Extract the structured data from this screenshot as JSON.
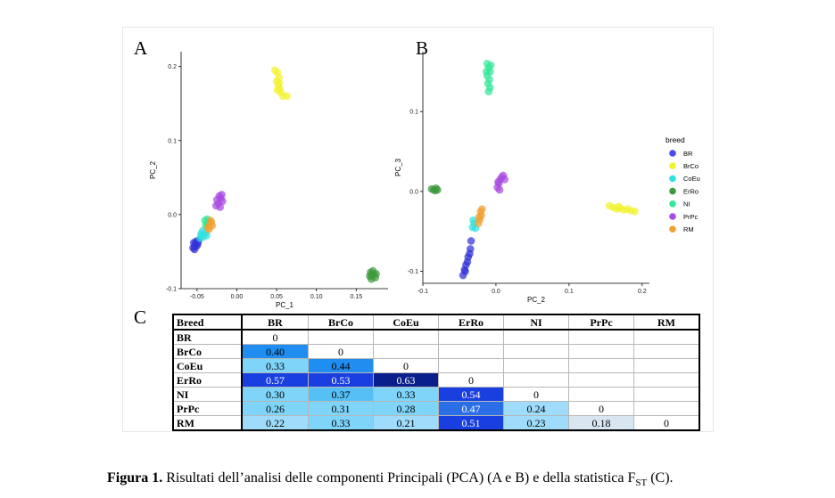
{
  "panels": {
    "a_letter": "A",
    "b_letter": "B",
    "c_letter": "C"
  },
  "legend": {
    "title": "breed",
    "entries": [
      {
        "label": "BR",
        "color": "#4a4ae8"
      },
      {
        "label": "BrCo",
        "color": "#f2f230"
      },
      {
        "label": "CoEu",
        "color": "#33e0e0"
      },
      {
        "label": "ErRo",
        "color": "#3c9a3c"
      },
      {
        "label": "NI",
        "color": "#33e89a"
      },
      {
        "label": "PrPc",
        "color": "#a84be0"
      },
      {
        "label": "RM",
        "color": "#f0a030"
      }
    ]
  },
  "chart_data": [
    {
      "type": "scatter",
      "panel": "A",
      "xlabel": "PC_1",
      "ylabel": "PC_2",
      "xlim": [
        -0.07,
        0.19
      ],
      "ylim": [
        -0.1,
        0.22
      ],
      "xticks": [
        "-0.05",
        "0.00",
        "0.05",
        "0.10",
        "0.15"
      ],
      "xtick_values": [
        -0.05,
        0.0,
        0.05,
        0.1,
        0.15
      ],
      "yticks": [
        "-0.1",
        "0.0",
        "0.1",
        "0.2"
      ],
      "ytick_values": [
        -0.1,
        0.0,
        0.1,
        0.2
      ],
      "series": [
        {
          "name": "BR",
          "color": "#3232d8",
          "points": [
            [
              -0.055,
              -0.045
            ],
            [
              -0.053,
              -0.043
            ],
            [
              -0.052,
              -0.04
            ],
            [
              -0.054,
              -0.038
            ],
            [
              -0.05,
              -0.042
            ],
            [
              -0.051,
              -0.036
            ],
            [
              -0.049,
              -0.039
            ],
            [
              -0.053,
              -0.047
            ],
            [
              -0.048,
              -0.035
            ]
          ]
        },
        {
          "name": "BrCo",
          "color": "#f2f230",
          "points": [
            [
              0.048,
              0.195
            ],
            [
              0.051,
              0.192
            ],
            [
              0.053,
              0.185
            ],
            [
              0.05,
              0.18
            ],
            [
              0.052,
              0.175
            ],
            [
              0.054,
              0.17
            ],
            [
              0.051,
              0.168
            ],
            [
              0.055,
              0.165
            ],
            [
              0.058,
              0.16
            ],
            [
              0.063,
              0.16
            ],
            [
              0.053,
              0.178
            ]
          ]
        },
        {
          "name": "CoEu",
          "color": "#33e0e0",
          "points": [
            [
              -0.046,
              -0.032
            ],
            [
              -0.044,
              -0.028
            ],
            [
              -0.042,
              -0.03
            ],
            [
              -0.04,
              -0.025
            ],
            [
              -0.043,
              -0.022
            ],
            [
              -0.038,
              -0.028
            ],
            [
              -0.045,
              -0.026
            ]
          ]
        },
        {
          "name": "ErRo",
          "color": "#3c9a3c",
          "points": [
            [
              0.168,
              -0.078
            ],
            [
              0.17,
              -0.082
            ],
            [
              0.172,
              -0.08
            ],
            [
              0.174,
              -0.085
            ],
            [
              0.169,
              -0.087
            ],
            [
              0.171,
              -0.076
            ],
            [
              0.175,
              -0.08
            ],
            [
              0.167,
              -0.083
            ]
          ]
        },
        {
          "name": "NI",
          "color": "#33e89a",
          "points": [
            [
              -0.04,
              -0.008
            ],
            [
              -0.038,
              -0.012
            ],
            [
              -0.036,
              -0.01
            ],
            [
              -0.039,
              -0.015
            ],
            [
              -0.037,
              -0.006
            ]
          ]
        },
        {
          "name": "PrPc",
          "color": "#a84be0",
          "points": [
            [
              -0.025,
              0.02
            ],
            [
              -0.022,
              0.025
            ],
            [
              -0.02,
              0.022
            ],
            [
              -0.023,
              0.015
            ],
            [
              -0.018,
              0.018
            ],
            [
              -0.021,
              0.01
            ],
            [
              -0.026,
              0.012
            ],
            [
              -0.019,
              0.027
            ]
          ]
        },
        {
          "name": "RM",
          "color": "#f0a030",
          "points": [
            [
              -0.036,
              -0.018
            ],
            [
              -0.034,
              -0.014
            ],
            [
              -0.032,
              -0.01
            ],
            [
              -0.035,
              -0.02
            ],
            [
              -0.031,
              -0.015
            ],
            [
              -0.033,
              -0.008
            ]
          ]
        }
      ]
    },
    {
      "type": "scatter",
      "panel": "B",
      "xlabel": "PC_2",
      "ylabel": "PC_3",
      "xlim": [
        -0.1,
        0.21
      ],
      "ylim": [
        -0.115,
        0.175
      ],
      "xticks": [
        "-0.1",
        "0.0",
        "0.1",
        "0.2"
      ],
      "xtick_values": [
        -0.1,
        0.0,
        0.1,
        0.2
      ],
      "yticks": [
        "-0.1",
        "0.0",
        "0.1"
      ],
      "ytick_values": [
        -0.1,
        0.0,
        0.1
      ],
      "series": [
        {
          "name": "BR",
          "color": "#3232d8",
          "points": [
            [
              -0.045,
              -0.105
            ],
            [
              -0.043,
              -0.098
            ],
            [
              -0.041,
              -0.092
            ],
            [
              -0.039,
              -0.088
            ],
            [
              -0.038,
              -0.082
            ],
            [
              -0.036,
              -0.078
            ],
            [
              -0.035,
              -0.072
            ],
            [
              -0.042,
              -0.1
            ],
            [
              -0.034,
              -0.062
            ]
          ]
        },
        {
          "name": "BrCo",
          "color": "#f2f230",
          "points": [
            [
              0.155,
              -0.018
            ],
            [
              0.16,
              -0.02
            ],
            [
              0.165,
              -0.022
            ],
            [
              0.17,
              -0.021
            ],
            [
              0.175,
              -0.023
            ],
            [
              0.18,
              -0.022
            ],
            [
              0.185,
              -0.024
            ],
            [
              0.19,
              -0.025
            ],
            [
              0.168,
              -0.019
            ]
          ]
        },
        {
          "name": "CoEu",
          "color": "#33e0e0",
          "points": [
            [
              -0.032,
              -0.045
            ],
            [
              -0.03,
              -0.04
            ],
            [
              -0.028,
              -0.046
            ],
            [
              -0.031,
              -0.036
            ]
          ]
        },
        {
          "name": "ErRo",
          "color": "#3c9a3c",
          "points": [
            [
              -0.088,
              0.003
            ],
            [
              -0.085,
              0.002
            ],
            [
              -0.082,
              0.004
            ],
            [
              -0.08,
              0.002
            ],
            [
              -0.083,
              0.001
            ]
          ]
        },
        {
          "name": "NI",
          "color": "#33e89a",
          "points": [
            [
              -0.012,
              0.16
            ],
            [
              -0.01,
              0.155
            ],
            [
              -0.008,
              0.15
            ],
            [
              -0.012,
              0.145
            ],
            [
              -0.009,
              0.14
            ],
            [
              -0.011,
              0.135
            ],
            [
              -0.008,
              0.13
            ],
            [
              -0.01,
              0.125
            ],
            [
              -0.013,
              0.15
            ],
            [
              -0.007,
              0.158
            ]
          ]
        },
        {
          "name": "PrPc",
          "color": "#a84be0",
          "points": [
            [
              0.002,
              0.005
            ],
            [
              0.004,
              0.01
            ],
            [
              0.006,
              0.015
            ],
            [
              0.008,
              0.018
            ],
            [
              0.01,
              0.02
            ],
            [
              0.005,
              0.002
            ],
            [
              0.012,
              0.015
            ],
            [
              0.003,
              0.012
            ]
          ]
        },
        {
          "name": "RM",
          "color": "#f0a030",
          "points": [
            [
              -0.024,
              -0.04
            ],
            [
              -0.022,
              -0.035
            ],
            [
              -0.02,
              -0.03
            ],
            [
              -0.021,
              -0.025
            ],
            [
              -0.019,
              -0.022
            ],
            [
              -0.023,
              -0.032
            ]
          ]
        }
      ]
    },
    {
      "type": "table",
      "panel": "C",
      "corner": "Breed",
      "columns": [
        "BR",
        "BrCo",
        "CoEu",
        "ErRo",
        "NI",
        "PrPc",
        "RM"
      ],
      "rows": [
        {
          "name": "BR",
          "values": [
            "0",
            "",
            "",
            "",
            "",
            "",
            ""
          ]
        },
        {
          "name": "BrCo",
          "values": [
            "0.40",
            "0",
            "",
            "",
            "",
            "",
            ""
          ]
        },
        {
          "name": "CoEu",
          "values": [
            "0.33",
            "0.44",
            "0",
            "",
            "",
            "",
            ""
          ]
        },
        {
          "name": "ErRo",
          "values": [
            "0.57",
            "0.53",
            "0.63",
            "0",
            "",
            "",
            ""
          ]
        },
        {
          "name": "NI",
          "values": [
            "0.30",
            "0.37",
            "0.33",
            "0.54",
            "0",
            "",
            ""
          ]
        },
        {
          "name": "PrPc",
          "values": [
            "0.26",
            "0.31",
            "0.28",
            "0.47",
            "0.24",
            "0",
            ""
          ]
        },
        {
          "name": "RM",
          "values": [
            "0.22",
            "0.33",
            "0.21",
            "0.51",
            "0.23",
            "0.18",
            "0"
          ]
        }
      ]
    }
  ],
  "caption": {
    "label": "Figura 1.",
    "text_main": " Risultati dell’analisi delle componenti Principali (PCA) (A e B) e della statistica F",
    "sub": "ST",
    "text_end": " (C)."
  }
}
